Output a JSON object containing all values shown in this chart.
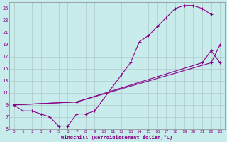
{
  "xlabel": "Windchill (Refroidissement éolien,°C)",
  "bg_color": "#c8ecec",
  "grid_color": "#b0c8c8",
  "line_color": "#880088",
  "xlim": [
    -0.5,
    23.5
  ],
  "ylim": [
    5,
    26
  ],
  "xticks": [
    0,
    1,
    2,
    3,
    4,
    5,
    6,
    7,
    8,
    9,
    10,
    11,
    12,
    13,
    14,
    15,
    16,
    17,
    18,
    19,
    20,
    21,
    22,
    23
  ],
  "yticks": [
    5,
    7,
    9,
    11,
    13,
    15,
    17,
    19,
    21,
    23,
    25
  ],
  "curve1_x": [
    0,
    1,
    2,
    3,
    4,
    5,
    6,
    7,
    8,
    9,
    10,
    11,
    12,
    13,
    14,
    15,
    16,
    17,
    18,
    19,
    20,
    21,
    22
  ],
  "curve1_y": [
    9,
    8,
    8,
    7.5,
    7,
    5.5,
    5.5,
    7.5,
    7.5,
    8,
    10,
    12,
    14,
    16,
    19.5,
    20.5,
    22,
    23.5,
    25,
    25.5,
    25.5,
    25,
    24
  ],
  "curve2_x": [
    0,
    7,
    22,
    23
  ],
  "curve2_y": [
    9,
    9.5,
    16,
    19
  ],
  "curve3_x": [
    0,
    7,
    21,
    22,
    23
  ],
  "curve3_y": [
    9,
    9.5,
    16,
    18,
    16
  ]
}
